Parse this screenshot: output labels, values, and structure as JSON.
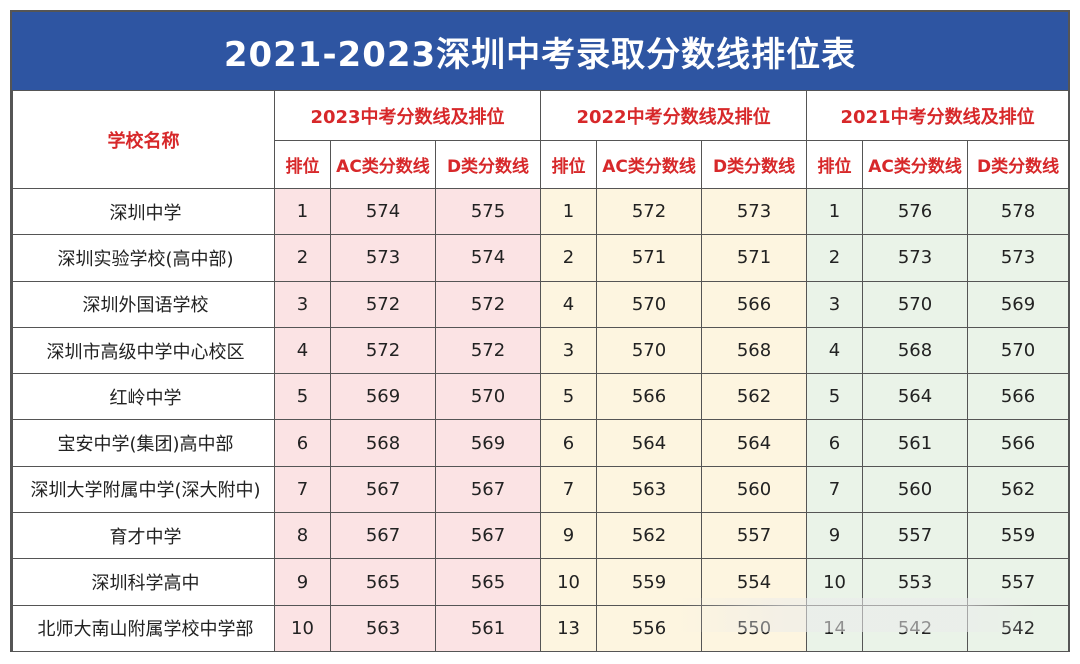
{
  "title": "2021-2023深圳中考录取分数线排位表",
  "header": {
    "school_label": "学校名称",
    "groups": [
      "2023中考分数线及排位",
      "2022中考分数线及排位",
      "2021中考分数线及排位"
    ],
    "sub": [
      "排位",
      "AC类分数线",
      "D类分数线"
    ]
  },
  "rows": [
    {
      "school": "深圳中学",
      "y2023": [
        "1",
        "574",
        "575"
      ],
      "y2022": [
        "1",
        "572",
        "573"
      ],
      "y2021": [
        "1",
        "576",
        "578"
      ]
    },
    {
      "school": "深圳实验学校(高中部)",
      "y2023": [
        "2",
        "573",
        "574"
      ],
      "y2022": [
        "2",
        "571",
        "571"
      ],
      "y2021": [
        "2",
        "573",
        "573"
      ]
    },
    {
      "school": "深圳外国语学校",
      "y2023": [
        "3",
        "572",
        "572"
      ],
      "y2022": [
        "4",
        "570",
        "566"
      ],
      "y2021": [
        "3",
        "570",
        "569"
      ]
    },
    {
      "school": "深圳市高级中学中心校区",
      "y2023": [
        "4",
        "572",
        "572"
      ],
      "y2022": [
        "3",
        "570",
        "568"
      ],
      "y2021": [
        "4",
        "568",
        "570"
      ]
    },
    {
      "school": "红岭中学",
      "y2023": [
        "5",
        "569",
        "570"
      ],
      "y2022": [
        "5",
        "566",
        "562"
      ],
      "y2021": [
        "5",
        "564",
        "566"
      ]
    },
    {
      "school": "宝安中学(集团)高中部",
      "y2023": [
        "6",
        "568",
        "569"
      ],
      "y2022": [
        "6",
        "564",
        "564"
      ],
      "y2021": [
        "6",
        "561",
        "566"
      ]
    },
    {
      "school": "深圳大学附属中学(深大附中)",
      "y2023": [
        "7",
        "567",
        "567"
      ],
      "y2022": [
        "7",
        "563",
        "560"
      ],
      "y2021": [
        "7",
        "560",
        "562"
      ]
    },
    {
      "school": "育才中学",
      "y2023": [
        "8",
        "567",
        "567"
      ],
      "y2022": [
        "9",
        "562",
        "557"
      ],
      "y2021": [
        "9",
        "557",
        "559"
      ]
    },
    {
      "school": "深圳科学高中",
      "y2023": [
        "9",
        "565",
        "565"
      ],
      "y2022": [
        "10",
        "559",
        "554"
      ],
      "y2021": [
        "10",
        "553",
        "557"
      ]
    },
    {
      "school": "北师大南山附属学校中学部",
      "y2023": [
        "10",
        "563",
        "561"
      ],
      "y2022": [
        "13",
        "556",
        "550"
      ],
      "y2021": [
        "14",
        "542",
        "542"
      ]
    }
  ]
}
